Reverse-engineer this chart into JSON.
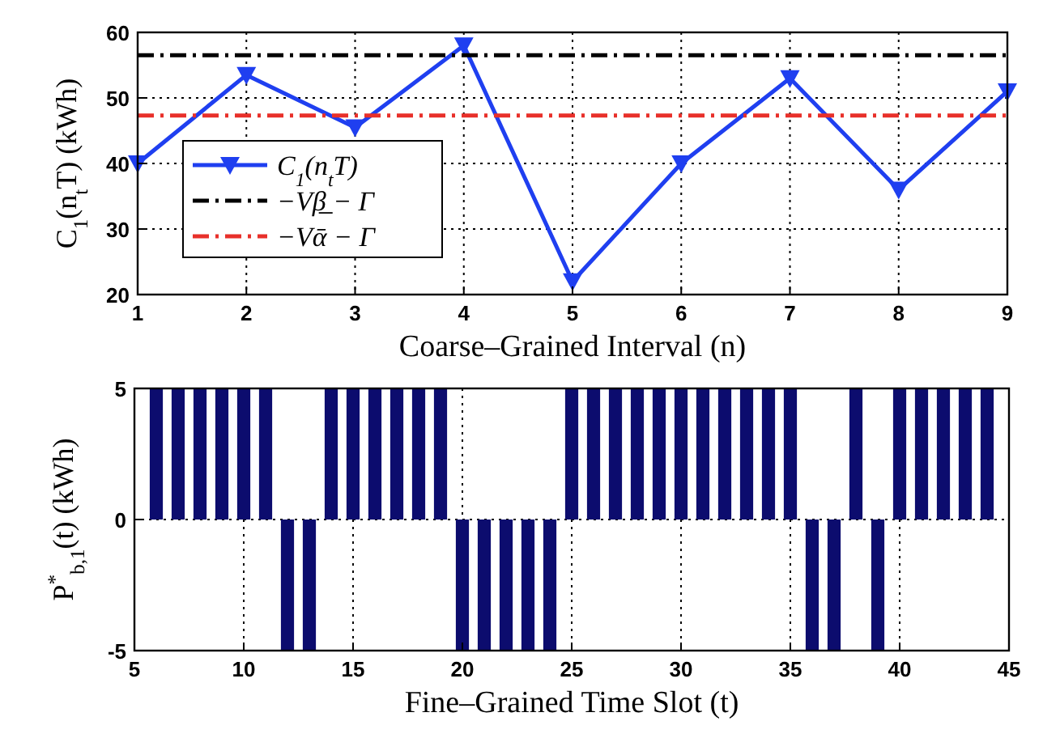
{
  "chart_data": [
    {
      "type": "line",
      "xlabel": "Coarse–Grained Interval (n)",
      "ylabel": "C$_{1}$(n$_{t}$T) (kWh)",
      "xlim": [
        1,
        9
      ],
      "xticks": [
        1,
        2,
        3,
        4,
        5,
        6,
        7,
        8,
        9
      ],
      "ylim": [
        20,
        60
      ],
      "yticks": [
        20,
        30,
        40,
        50,
        60
      ],
      "grid": true,
      "legend": "left",
      "series": [
        {
          "name": "C$_{1}$(n$_{t}$T)",
          "color": "#1f3ff0",
          "x": [
            1,
            2,
            3,
            4,
            5,
            6,
            7,
            8,
            9
          ],
          "values": [
            40,
            53.5,
            45.5,
            58,
            22,
            40,
            53,
            36,
            51
          ],
          "marker": "triangle",
          "line_style": "solid"
        },
        {
          "name": "−Vβ̲ − Γ",
          "color": "#000000",
          "x": [
            1,
            9
          ],
          "values": [
            56.5,
            56.5
          ],
          "marker": "none",
          "line_style": "dashed"
        },
        {
          "name": "−Vᾱ − Γ",
          "color": "#e8302a",
          "x": [
            1,
            9
          ],
          "values": [
            47.3,
            47.3
          ],
          "marker": "none",
          "line_style": "dashed"
        }
      ]
    },
    {
      "type": "bar",
      "xlabel": "Fine–Grained Time Slot (t)",
      "ylabel": "P$^{*}$$_{b,1}$(t) (kWh)",
      "xlim": [
        5,
        45
      ],
      "xticks": [
        5,
        10,
        15,
        20,
        25,
        30,
        35,
        40,
        45
      ],
      "ylim": [
        -5,
        5
      ],
      "yticks": [
        -5,
        0,
        5
      ],
      "grid": true,
      "color": "#0c0c6e",
      "x": [
        6,
        7,
        8,
        9,
        10,
        11,
        12,
        13,
        14,
        15,
        16,
        17,
        18,
        19,
        20,
        21,
        22,
        23,
        24,
        25,
        26,
        27,
        28,
        29,
        30,
        31,
        32,
        33,
        34,
        35,
        36,
        37,
        38,
        39,
        40,
        41,
        42,
        43,
        44
      ],
      "values": [
        5,
        5,
        5,
        5,
        5,
        5,
        -5,
        -5,
        5,
        5,
        5,
        5,
        5,
        5,
        -5,
        -5,
        -5,
        -5,
        -5,
        5,
        5,
        5,
        5,
        5,
        5,
        5,
        5,
        5,
        5,
        5,
        -5,
        -5,
        5,
        -5,
        5,
        5,
        5,
        5,
        5
      ]
    }
  ]
}
